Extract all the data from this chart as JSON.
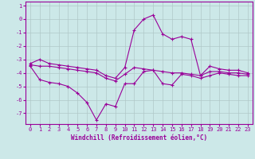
{
  "title": "",
  "xlabel": "Windchill (Refroidissement éolien,°C)",
  "ylabel": "",
  "bg_color": "#cce8e8",
  "grid_color": "#b0c8c8",
  "line_color": "#990099",
  "x": [
    0,
    1,
    2,
    3,
    4,
    5,
    6,
    7,
    8,
    9,
    10,
    11,
    12,
    13,
    14,
    15,
    16,
    17,
    18,
    19,
    20,
    21,
    22,
    23
  ],
  "line_max": [
    -3.3,
    -3.0,
    -3.3,
    -3.4,
    -3.5,
    -3.6,
    -3.7,
    -3.8,
    -4.2,
    -4.4,
    -3.6,
    -0.8,
    0.0,
    0.3,
    -1.1,
    -1.5,
    -1.3,
    -1.5,
    -4.2,
    -3.5,
    -3.7,
    -3.8,
    -3.8,
    -4.0
  ],
  "line_mean": [
    -3.4,
    -3.5,
    -3.5,
    -3.6,
    -3.7,
    -3.8,
    -3.9,
    -4.0,
    -4.4,
    -4.6,
    -4.1,
    -3.6,
    -3.7,
    -3.8,
    -3.9,
    -4.0,
    -4.0,
    -4.1,
    -4.2,
    -3.9,
    -3.9,
    -4.0,
    -4.0,
    -4.1
  ],
  "line_min": [
    -3.5,
    -4.5,
    -4.7,
    -4.8,
    -5.0,
    -5.5,
    -6.2,
    -7.5,
    -6.3,
    -6.5,
    -4.8,
    -4.8,
    -3.9,
    -3.8,
    -4.8,
    -4.9,
    -4.1,
    -4.2,
    -4.4,
    -4.2,
    -4.0,
    -4.1,
    -4.2,
    -4.2
  ],
  "ylim": [
    -7.8,
    1.3
  ],
  "xlim": [
    -0.5,
    23.5
  ],
  "yticks": [
    1,
    0,
    -1,
    -2,
    -3,
    -4,
    -5,
    -6,
    -7
  ],
  "xticks": [
    0,
    1,
    2,
    3,
    4,
    5,
    6,
    7,
    8,
    9,
    10,
    11,
    12,
    13,
    14,
    15,
    16,
    17,
    18,
    19,
    20,
    21,
    22,
    23
  ],
  "marker": "+",
  "markersize": 3.5,
  "linewidth": 0.8,
  "xlabel_fontsize": 5.5,
  "tick_fontsize": 5.0
}
